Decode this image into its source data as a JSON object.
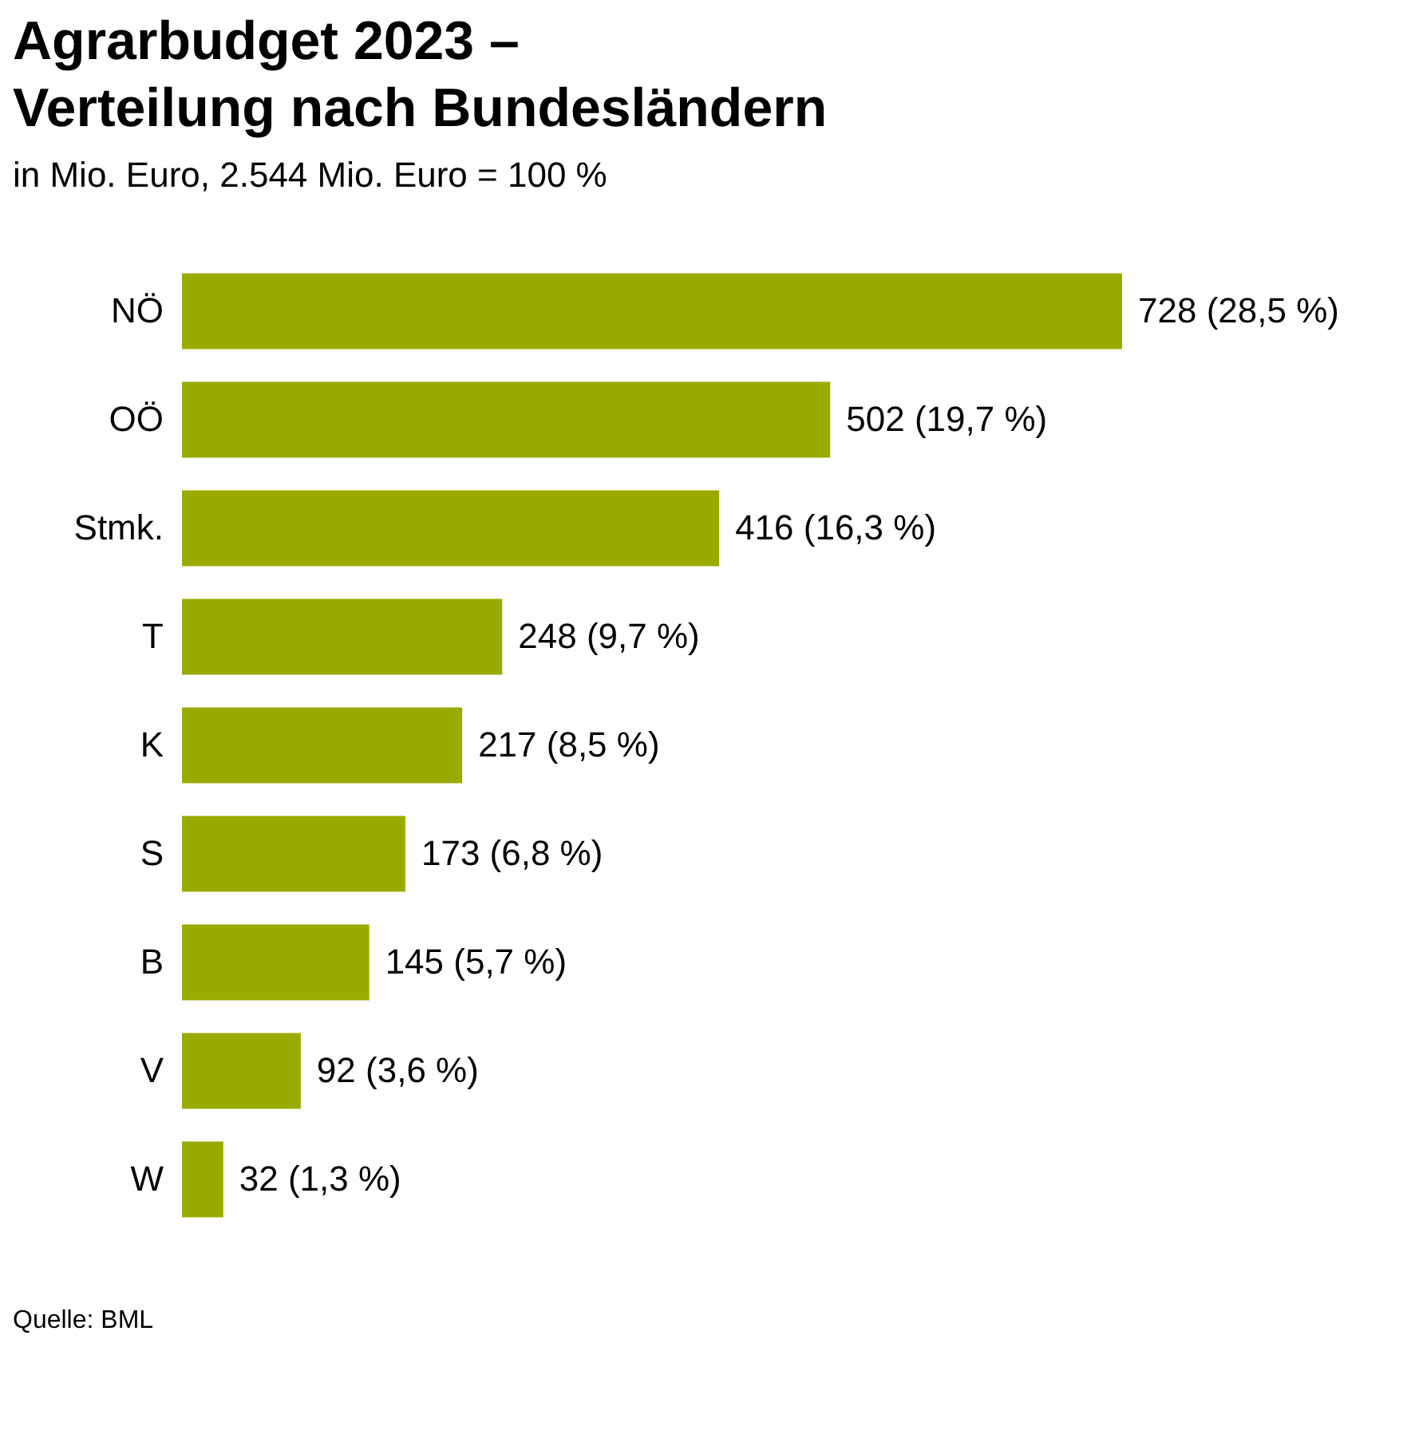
{
  "chart_data": {
    "type": "bar",
    "orientation": "horizontal",
    "title": [
      "Agrarbudget 2023 –",
      "Verteilung nach Bundesländern"
    ],
    "subtitle": "in Mio. Euro, 2.544 Mio. Euro = 100 %",
    "categories": [
      "NÖ",
      "OÖ",
      "Stmk.",
      "T",
      "K",
      "S",
      "B",
      "V",
      "W"
    ],
    "values": [
      728,
      502,
      416,
      248,
      217,
      173,
      145,
      92,
      32
    ],
    "value_labels": [
      "728 (28,5 %)",
      "502 (19,7 %)",
      "416 (16,3 %)",
      "248 (9,7 %)",
      "217 (8,5 %)",
      "173 (6,8 %)",
      "145 (5,7 %)",
      "92 (3,6 %)",
      "32 (1,3 %)"
    ],
    "color": "#9aab00",
    "annotations": [
      "Quelle: BML"
    ],
    "grid": false
  }
}
